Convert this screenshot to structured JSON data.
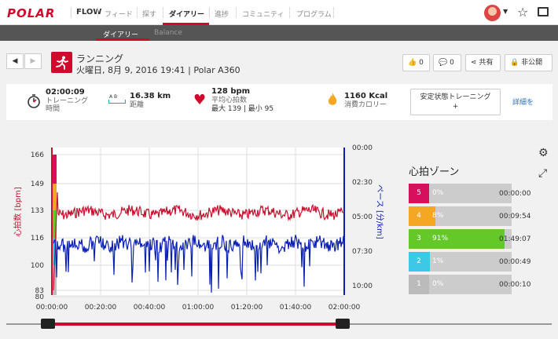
{
  "nav": {
    "logo": "POLAR",
    "flow": "FLOW",
    "items": [
      "フィード",
      "探す",
      "ダイアリー",
      "進捗",
      "コミュニティ",
      "プログラム"
    ],
    "active_index": 2
  },
  "subnav": {
    "items": [
      "ダイアリー",
      "Balance"
    ],
    "active_index": 0
  },
  "session": {
    "sport": "ランニング",
    "datetime": "火曜日, 8月 9, 2016 19:41",
    "device": "Polar A360",
    "subtitle": "火曜日, 8月 9, 2016 19:41 | Polar A360"
  },
  "actions": {
    "likes": "0",
    "comments": "0",
    "share": "共有",
    "privacy": "非公開"
  },
  "summary": {
    "duration_value": "02:00:09",
    "duration_label": "トレーニング\n時間",
    "distance_value": "16.38 km",
    "distance_label": "距離",
    "distance_ab": "A  B",
    "hr_value": "128 bpm",
    "hr_label": "平均心拍数",
    "hr_minmax": "最大 139  |  最小 95",
    "cal_value": "1160 Kcal",
    "cal_label": "消費カロリー",
    "steady_label": "安定状態トレーニング",
    "steady_plus": "+",
    "details_link": "詳細を"
  },
  "chart": {
    "hr_axis_label": "心拍数 [bpm]",
    "pace_axis_label": "ペース [分/km]",
    "hr_ticks": [
      "166",
      "149",
      "133",
      "116",
      "100",
      "83",
      "80"
    ],
    "pace_ticks": [
      "00:00",
      "02:30",
      "05:00",
      "07:30",
      "10:00"
    ],
    "time_ticks": [
      "00:00:00",
      "00:20:00",
      "00:40:00",
      "01:00:00",
      "01:20:00",
      "01:40:00",
      "02:00:00"
    ],
    "colors": {
      "hr": "#c8102e",
      "pace": "#0a1fb4"
    }
  },
  "chart_data": {
    "type": "line",
    "x_label": "",
    "x": [
      "00:00:00",
      "00:20:00",
      "00:40:00",
      "01:00:00",
      "01:20:00",
      "01:40:00",
      "02:00:00"
    ],
    "series": [
      {
        "name": "心拍数 [bpm]",
        "axis": "left",
        "ylim": [
          80,
          166
        ],
        "values": [
          100,
          128,
          129,
          128,
          127,
          128,
          130
        ]
      },
      {
        "name": "ペース [分/km]",
        "axis": "right",
        "ylim": [
          "00:00",
          "10:00"
        ],
        "values": [
          "07:30",
          "07:30",
          "07:45",
          "07:40",
          "07:30",
          "07:25",
          "07:20"
        ]
      }
    ],
    "grid": true
  },
  "zones": {
    "title": "心拍ゾーン",
    "items": [
      {
        "zone": "5",
        "pct": "0%",
        "fraction": 0.0,
        "time": "00:00:00",
        "color": "#d6105a"
      },
      {
        "zone": "4",
        "pct": "8%",
        "fraction": 0.08,
        "time": "00:09:54",
        "color": "#f5a623"
      },
      {
        "zone": "3",
        "pct": "91%",
        "fraction": 0.91,
        "time": "01:49:07",
        "color": "#64c828"
      },
      {
        "zone": "2",
        "pct": "1%",
        "fraction": 0.01,
        "time": "00:00:49",
        "color": "#3ec8e8"
      },
      {
        "zone": "1",
        "pct": "0%",
        "fraction": 0.0,
        "time": "00:00:10",
        "color": "#bbbbbb"
      }
    ]
  },
  "icons": [
    "settings-icon",
    "expand-icon",
    "run-icon",
    "stopwatch-icon",
    "heart-icon",
    "flame-icon"
  ]
}
